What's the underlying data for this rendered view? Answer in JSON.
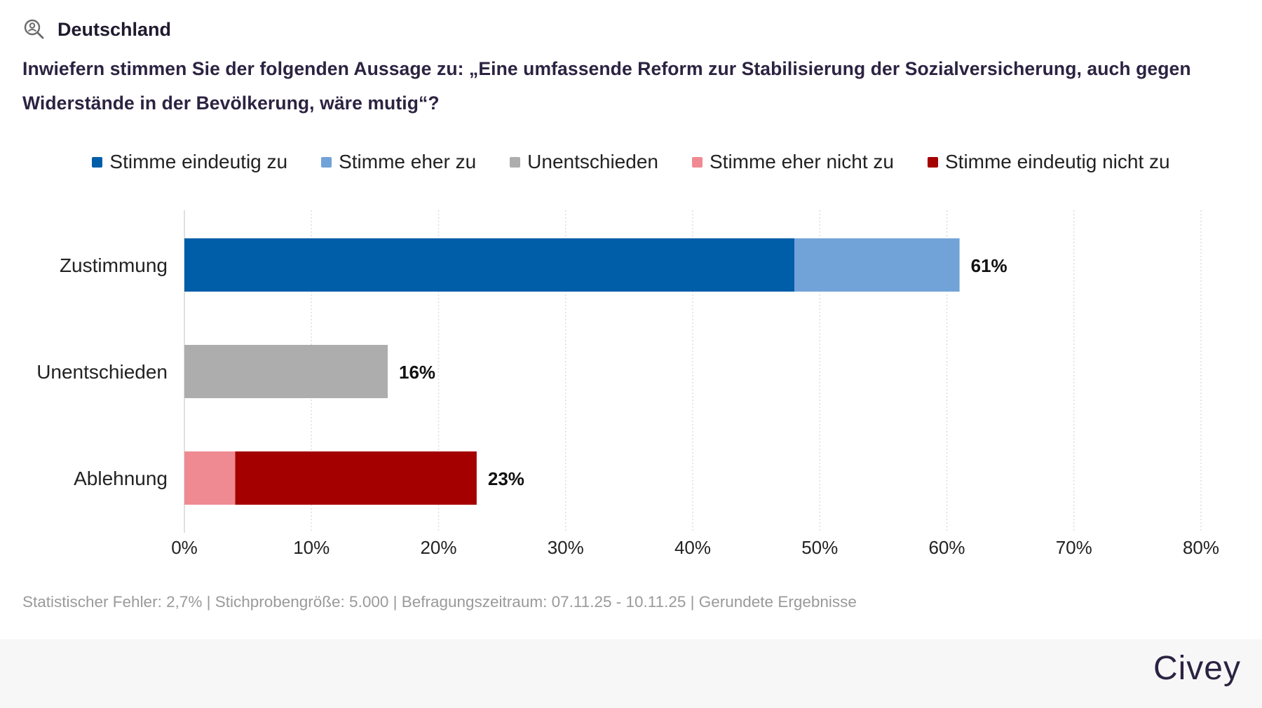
{
  "header": {
    "region": "Deutschland",
    "region_icon": "person-search-icon",
    "question": "Inwiefern stimmen Sie der folgenden Aussage zu: „Eine umfassende Reform zur Stabilisierung der Sozialversicherung, auch gegen Widerstände in der Bevölkerung, wäre mutig“?"
  },
  "legend": [
    {
      "label": "Stimme eindeutig zu",
      "color": "#005ea8"
    },
    {
      "label": "Stimme eher zu",
      "color": "#72a3d8"
    },
    {
      "label": "Unentschieden",
      "color": "#adadad"
    },
    {
      "label": "Stimme eher nicht zu",
      "color": "#ef8a93"
    },
    {
      "label": "Stimme eindeutig nicht zu",
      "color": "#a50000"
    }
  ],
  "chart_data": {
    "type": "bar",
    "orientation": "horizontal",
    "stacked": true,
    "categories": [
      "Zustimmung",
      "Unentschieden",
      "Ablehnung"
    ],
    "series": [
      {
        "name": "Stimme eindeutig zu",
        "color": "#005ea8",
        "values": [
          48,
          0,
          0
        ]
      },
      {
        "name": "Stimme eher zu",
        "color": "#72a3d8",
        "values": [
          13,
          0,
          0
        ]
      },
      {
        "name": "Unentschieden",
        "color": "#adadad",
        "values": [
          0,
          16,
          0
        ]
      },
      {
        "name": "Stimme eher nicht zu",
        "color": "#ef8a93",
        "values": [
          0,
          0,
          4
        ]
      },
      {
        "name": "Stimme eindeutig nicht zu",
        "color": "#a50000",
        "values": [
          0,
          0,
          19
        ]
      }
    ],
    "totals": [
      "61%",
      "16%",
      "23%"
    ],
    "xlim": [
      0,
      80
    ],
    "xticks": [
      0,
      10,
      20,
      30,
      40,
      50,
      60,
      70,
      80
    ],
    "xtick_labels": [
      "0%",
      "10%",
      "20%",
      "30%",
      "40%",
      "50%",
      "60%",
      "70%",
      "80%"
    ],
    "grid": "vertical-dotted",
    "legend_position": "top-center"
  },
  "footnote": "Statistischer Fehler: 2,7% | Stichprobengröße: 5.000 | Befragungszeitraum: 07.11.25 - 10.11.25 | Gerundete Ergebnisse",
  "brand": "Civey"
}
